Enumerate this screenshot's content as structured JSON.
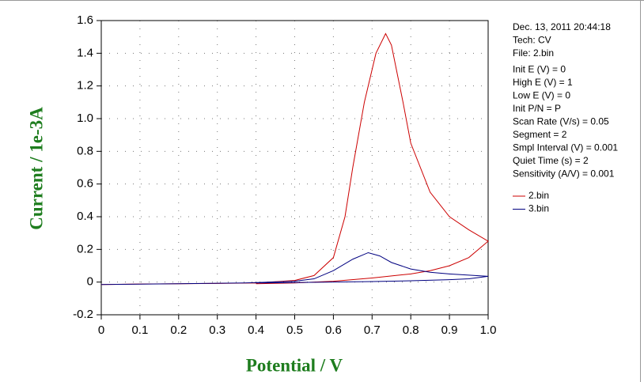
{
  "chart_data": {
    "type": "line",
    "x_label": "Potential / V",
    "y_label": "Current / 1e-3A",
    "xlim": [
      0,
      1
    ],
    "ylim": [
      -0.2,
      1.6
    ],
    "xticks": [
      0,
      0.1,
      0.2,
      0.3,
      0.4,
      0.5,
      0.6,
      0.7,
      0.8,
      0.9,
      {
        "value": 1,
        "label": "1.0"
      }
    ],
    "yticks": [
      -0.2,
      0,
      0.2,
      0.4,
      0.6,
      0.8,
      {
        "value": 1,
        "label": "1.0"
      },
      1.2,
      1.4,
      1.6
    ],
    "grid": true,
    "info": [
      "Dec. 13, 2011    20:44:18",
      "Tech: CV",
      "File: 2.bin",
      "Init E (V) = 0",
      "High E (V) = 1",
      "Low E (V) = 0",
      "Init P/N = P",
      "Scan Rate (V/s) = 0.05",
      "Segment = 2",
      "Smpl Interval (V) = 0.001",
      "Quiet Time (s) = 2",
      "Sensitivity (A/V) = 0.001"
    ],
    "series": [
      {
        "name": "2.bin",
        "color": "#cc0000",
        "x": [
          0,
          0.1,
          0.2,
          0.3,
          0.4,
          0.5,
          0.55,
          0.6,
          0.63,
          0.65,
          0.68,
          0.71,
          0.735,
          0.75,
          0.78,
          0.8,
          0.85,
          0.9,
          0.95,
          1.0,
          0.95,
          0.9,
          0.85,
          0.8,
          0.7,
          0.6,
          0.5,
          0.4
        ],
        "values": [
          -0.015,
          -0.012,
          -0.01,
          -0.008,
          -0.005,
          0.01,
          0.04,
          0.15,
          0.4,
          0.7,
          1.1,
          1.4,
          1.52,
          1.45,
          1.1,
          0.85,
          0.55,
          0.4,
          0.32,
          0.25,
          0.15,
          0.1,
          0.07,
          0.05,
          0.025,
          0.005,
          -0.005,
          -0.01
        ]
      },
      {
        "name": "3.bin",
        "color": "#000080",
        "x": [
          0,
          0.2,
          0.37,
          0.5,
          0.55,
          0.6,
          0.65,
          0.69,
          0.72,
          0.75,
          0.8,
          0.85,
          0.9,
          1.0,
          0.95,
          0.9,
          0.8,
          0.7,
          0.6,
          0.5,
          0.4
        ],
        "values": [
          -0.015,
          -0.01,
          -0.005,
          0.005,
          0.02,
          0.07,
          0.14,
          0.18,
          0.16,
          0.12,
          0.08,
          0.06,
          0.05,
          0.035,
          0.02,
          0.015,
          0.008,
          0.003,
          0,
          -0.003,
          -0.005
        ]
      }
    ]
  }
}
